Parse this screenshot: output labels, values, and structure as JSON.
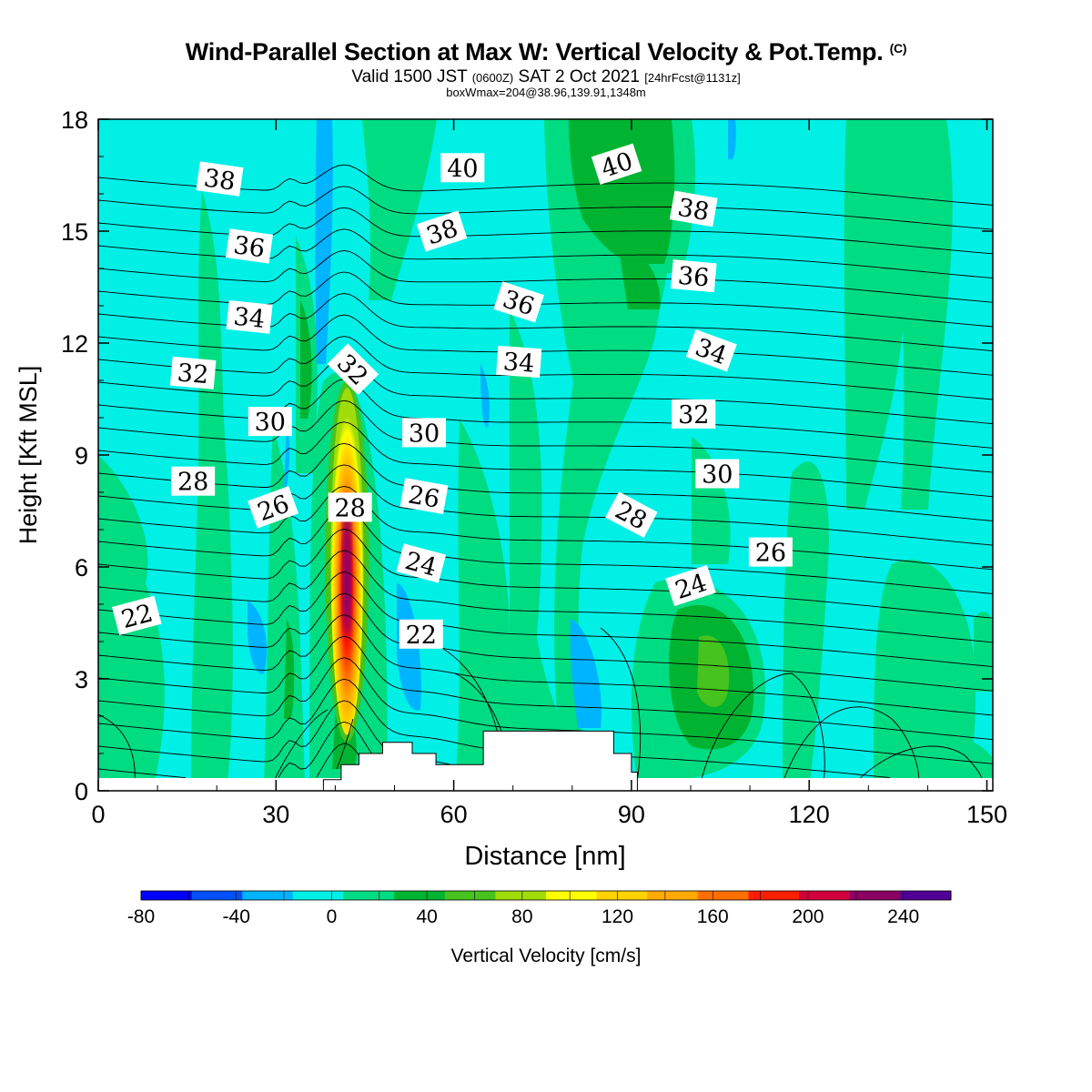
{
  "header": {
    "title": "Wind-Parallel Section at Max W: Vertical Velocity & Pot.Temp.",
    "title_mark": "(C)",
    "valid_a": "Valid 1500 JST",
    "valid_utc": "(0600Z)",
    "valid_b": "SAT 2 Oct 2021",
    "forecast": "[24hrFcst@1131z]",
    "boxinfo": "boxWmax=204@38.96,139.91,1348m"
  },
  "chart_data": {
    "type": "heatmap",
    "title": "Wind-Parallel Section at Max W: Vertical Velocity & Pot.Temp.",
    "xlabel": "Distance [nm]",
    "ylabel": "Height [Kft MSL]",
    "xlim": [
      0,
      151
    ],
    "ylim": [
      0,
      18
    ],
    "xticks": [
      0,
      30,
      60,
      90,
      120,
      150
    ],
    "yticks": [
      0,
      3,
      6,
      9,
      12,
      15,
      18
    ],
    "grid": false,
    "colorbar": {
      "label": "Vertical Velocity [cm/s]",
      "placement": "bottom",
      "min": -80,
      "max": 260,
      "step": 20,
      "tick_labels": [
        "-80",
        "-40",
        "0",
        "40",
        "80",
        "120",
        "160",
        "200",
        "240"
      ],
      "colors": [
        "#0000ff",
        "#0050ff",
        "#00b4ff",
        "#00f0e6",
        "#00dc82",
        "#00b432",
        "#46c31e",
        "#a0dc0a",
        "#ffff00",
        "#ffd200",
        "#ffaa00",
        "#ff6e00",
        "#ff1e00",
        "#d2003c",
        "#8c0064",
        "#500096"
      ]
    },
    "vertical_velocity_max": {
      "value": 204,
      "lat": 38.96,
      "lon": 139.91,
      "height_m": 1348
    },
    "updraft_core": {
      "x": 42,
      "y_bottom": 1.5,
      "y_top": 10.8,
      "peak_kft": 6
    },
    "terrain": [
      [
        38,
        0.3
      ],
      [
        41,
        0.7
      ],
      [
        44,
        1.0
      ],
      [
        48,
        1.3
      ],
      [
        53,
        1.0
      ],
      [
        57,
        0.7
      ],
      [
        61,
        0.7
      ],
      [
        65,
        1.6
      ],
      [
        84,
        1.6
      ],
      [
        87,
        1.0
      ],
      [
        90,
        0.5
      ],
      [
        91,
        0.0
      ]
    ],
    "theta_contours": {
      "field": "Pot.Temp.",
      "labels": [
        {
          "text": "38",
          "x": 20.5,
          "y": 16.4,
          "rot": 8
        },
        {
          "text": "36",
          "x": 25.5,
          "y": 14.6,
          "rot": 8
        },
        {
          "text": "34",
          "x": 25.5,
          "y": 12.7,
          "rot": 6
        },
        {
          "text": "32",
          "x": 16,
          "y": 11.2,
          "rot": 5
        },
        {
          "text": "30",
          "x": 29,
          "y": 9.9,
          "rot": 0
        },
        {
          "text": "28",
          "x": 16,
          "y": 8.3,
          "rot": 0
        },
        {
          "text": "26",
          "x": 29.5,
          "y": 7.6,
          "rot": -20
        },
        {
          "text": "22",
          "x": 6.5,
          "y": 4.7,
          "rot": -15
        },
        {
          "text": "32",
          "x": 43,
          "y": 11.3,
          "rot": 45
        },
        {
          "text": "28",
          "x": 42.5,
          "y": 7.6,
          "rot": 0
        },
        {
          "text": "40",
          "x": 61.5,
          "y": 16.7,
          "rot": 0
        },
        {
          "text": "38",
          "x": 58,
          "y": 15.0,
          "rot": -18
        },
        {
          "text": "36",
          "x": 71,
          "y": 13.1,
          "rot": 18
        },
        {
          "text": "34",
          "x": 71,
          "y": 11.5,
          "rot": 4
        },
        {
          "text": "30",
          "x": 55,
          "y": 9.6,
          "rot": 0
        },
        {
          "text": "26",
          "x": 55,
          "y": 7.9,
          "rot": 10
        },
        {
          "text": "24",
          "x": 54.5,
          "y": 6.1,
          "rot": 15
        },
        {
          "text": "22",
          "x": 54.5,
          "y": 4.2,
          "rot": 0
        },
        {
          "text": "40",
          "x": 87.5,
          "y": 16.8,
          "rot": -18
        },
        {
          "text": "38",
          "x": 100.5,
          "y": 15.6,
          "rot": 10
        },
        {
          "text": "36",
          "x": 100.5,
          "y": 13.8,
          "rot": 5
        },
        {
          "text": "34",
          "x": 103.5,
          "y": 11.8,
          "rot": 20
        },
        {
          "text": "32",
          "x": 100.5,
          "y": 10.1,
          "rot": 0
        },
        {
          "text": "30",
          "x": 104.5,
          "y": 8.5,
          "rot": 0
        },
        {
          "text": "28",
          "x": 90,
          "y": 7.4,
          "rot": 28
        },
        {
          "text": "26",
          "x": 113.5,
          "y": 6.4,
          "rot": 0
        },
        {
          "text": "24",
          "x": 100,
          "y": 5.5,
          "rot": -18
        }
      ]
    }
  }
}
